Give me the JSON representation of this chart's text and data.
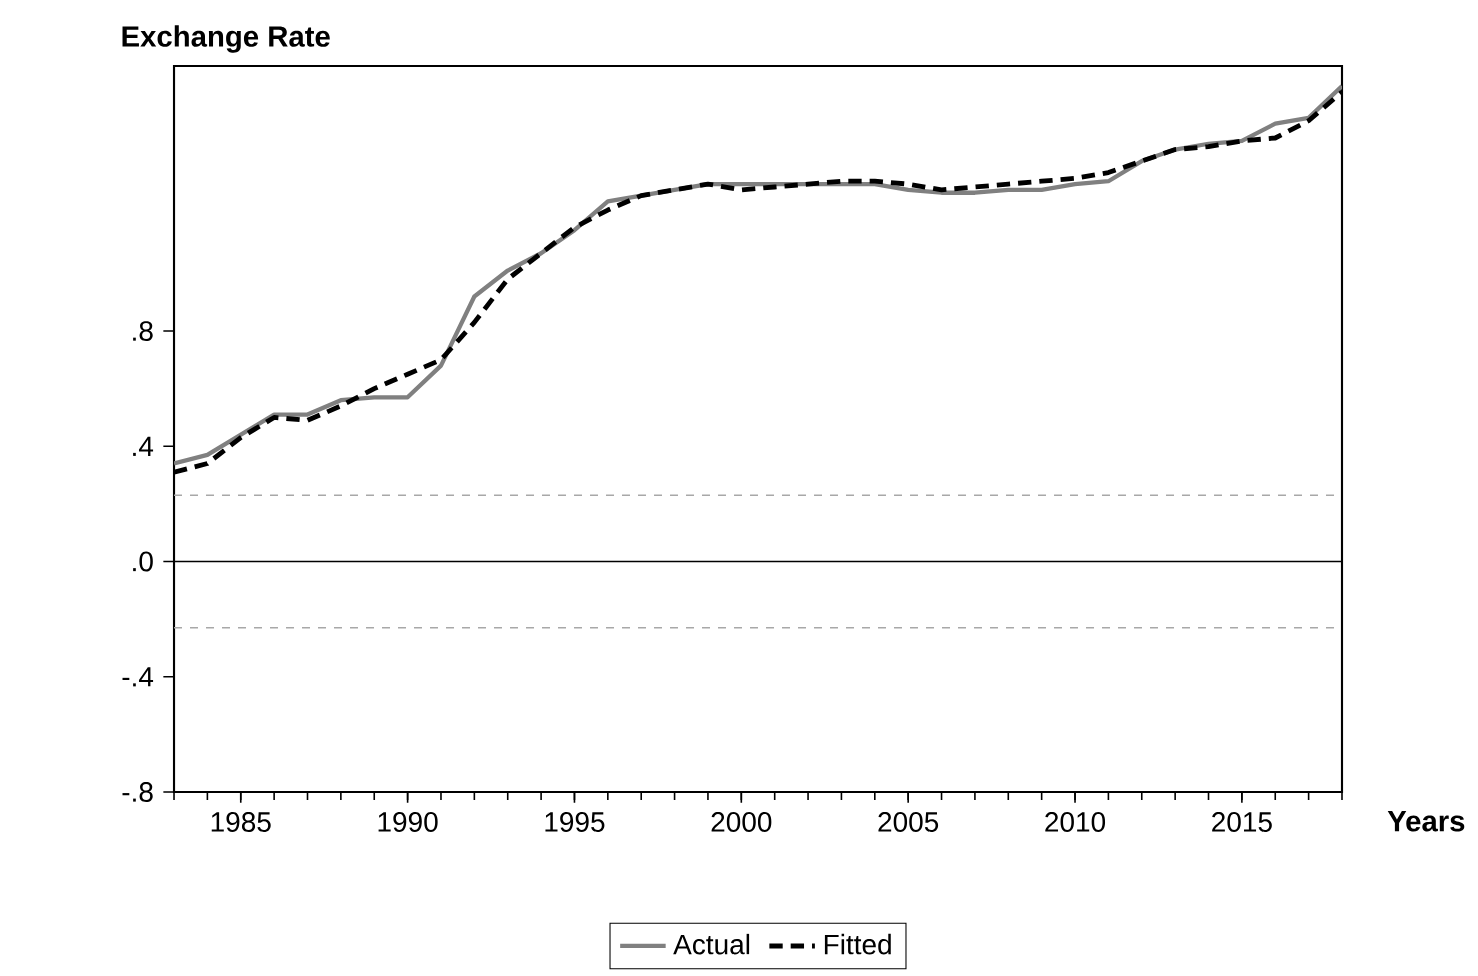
{
  "chart_data": {
    "type": "line",
    "title": "Exchange Rate",
    "xlabel": "Years",
    "x": [
      1983,
      1984,
      1985,
      1986,
      1987,
      1988,
      1989,
      1990,
      1991,
      1992,
      1993,
      1994,
      1995,
      1996,
      1997,
      1998,
      1999,
      2000,
      2001,
      2002,
      2003,
      2004,
      2005,
      2006,
      2007,
      2008,
      2009,
      2010,
      2011,
      2012,
      2013,
      2014,
      2015,
      2016,
      2017,
      2018
    ],
    "series": [
      {
        "name": "Actual",
        "color": "#808080",
        "line_style": "solid",
        "values": [
          0.34,
          0.37,
          0.44,
          0.51,
          0.51,
          0.56,
          0.57,
          0.57,
          0.68,
          0.92,
          1.01,
          1.07,
          1.15,
          1.25,
          1.27,
          1.29,
          1.31,
          1.31,
          1.31,
          1.31,
          1.31,
          1.31,
          1.29,
          1.28,
          1.28,
          1.29,
          1.29,
          1.31,
          1.32,
          1.39,
          1.43,
          1.45,
          1.46,
          1.52,
          1.54,
          1.65
        ]
      },
      {
        "name": "Fitted",
        "color": "#000000",
        "line_style": "dashed",
        "values": [
          0.31,
          0.34,
          0.43,
          0.5,
          0.49,
          0.54,
          0.6,
          0.65,
          0.7,
          0.83,
          0.98,
          1.07,
          1.16,
          1.22,
          1.27,
          1.29,
          1.31,
          1.29,
          1.3,
          1.31,
          1.32,
          1.32,
          1.31,
          1.29,
          1.3,
          1.31,
          1.32,
          1.33,
          1.35,
          1.39,
          1.43,
          1.44,
          1.46,
          1.47,
          1.53,
          1.63
        ]
      }
    ],
    "xlim": [
      1983,
      2018
    ],
    "xticks": [
      1985,
      1990,
      1995,
      2000,
      2005,
      2010,
      2015
    ],
    "ylim": [
      -0.8,
      1.72
    ],
    "yticks": [
      {
        "value": -0.8,
        "label": "-.8"
      },
      {
        "value": -0.4,
        "label": "-.4"
      },
      {
        "value": 0,
        "label": ".0"
      },
      {
        "value": 0.4,
        "label": ".4"
      },
      {
        "value": 0.8,
        "label": ".8"
      }
    ],
    "ref_lines": [
      {
        "axis": "y",
        "value": 0.23,
        "color": "#a8a8a8",
        "line_style": "dashed"
      },
      {
        "axis": "y",
        "value": 0,
        "color": "#000000",
        "line_style": "solid"
      },
      {
        "axis": "y",
        "value": -0.23,
        "color": "#a8a8a8",
        "line_style": "dashed"
      }
    ],
    "legend": "bottom"
  }
}
